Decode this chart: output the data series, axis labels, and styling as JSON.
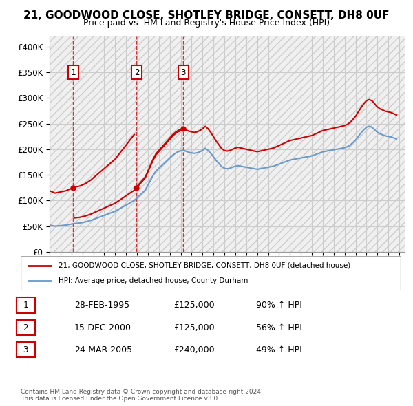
{
  "title": "21, GOODWOOD CLOSE, SHOTLEY BRIDGE, CONSETT, DH8 0UF",
  "subtitle": "Price paid vs. HM Land Registry's House Price Index (HPI)",
  "ylabel_ticks": [
    "£0",
    "£50K",
    "£100K",
    "£150K",
    "£200K",
    "£250K",
    "£300K",
    "£350K",
    "£400K"
  ],
  "y_values": [
    0,
    50000,
    100000,
    150000,
    200000,
    250000,
    300000,
    350000,
    400000
  ],
  "ylim": [
    0,
    420000
  ],
  "xlim_start": 1993.0,
  "xlim_end": 2025.5,
  "sale_dates": [
    1995.16,
    2000.96,
    2005.23
  ],
  "sale_prices": [
    125000,
    125000,
    240000
  ],
  "sale_labels": [
    "1",
    "2",
    "3"
  ],
  "vline_color": "#cc0000",
  "sale_color": "#cc0000",
  "hpi_color": "#6699cc",
  "background_color": "#f0f0f0",
  "chart_bg": "#ffffff",
  "grid_color": "#cccccc",
  "legend_label_sale": "21, GOODWOOD CLOSE, SHOTLEY BRIDGE, CONSETT, DH8 0UF (detached house)",
  "legend_label_hpi": "HPI: Average price, detached house, County Durham",
  "table_data": [
    [
      "1",
      "28-FEB-1995",
      "£125,000",
      "90% ↑ HPI"
    ],
    [
      "2",
      "15-DEC-2000",
      "£125,000",
      "56% ↑ HPI"
    ],
    [
      "3",
      "24-MAR-2005",
      "£240,000",
      "49% ↑ HPI"
    ]
  ],
  "footnote": "Contains HM Land Registry data © Crown copyright and database right 2024.\nThis data is licensed under the Open Government Licence v3.0.",
  "hpi_years": [
    1993.0,
    1993.25,
    1993.5,
    1993.75,
    1994.0,
    1994.25,
    1994.5,
    1994.75,
    1995.0,
    1995.25,
    1995.5,
    1995.75,
    1996.0,
    1996.25,
    1996.5,
    1996.75,
    1997.0,
    1997.25,
    1997.5,
    1997.75,
    1998.0,
    1998.25,
    1998.5,
    1998.75,
    1999.0,
    1999.25,
    1999.5,
    1999.75,
    2000.0,
    2000.25,
    2000.5,
    2000.75,
    2001.0,
    2001.25,
    2001.5,
    2001.75,
    2002.0,
    2002.25,
    2002.5,
    2002.75,
    2003.0,
    2003.25,
    2003.5,
    2003.75,
    2004.0,
    2004.25,
    2004.5,
    2004.75,
    2005.0,
    2005.25,
    2005.5,
    2005.75,
    2006.0,
    2006.25,
    2006.5,
    2006.75,
    2007.0,
    2007.25,
    2007.5,
    2007.75,
    2008.0,
    2008.25,
    2008.5,
    2008.75,
    2009.0,
    2009.25,
    2009.5,
    2009.75,
    2010.0,
    2010.25,
    2010.5,
    2010.75,
    2011.0,
    2011.25,
    2011.5,
    2011.75,
    2012.0,
    2012.25,
    2012.5,
    2012.75,
    2013.0,
    2013.25,
    2013.5,
    2013.75,
    2014.0,
    2014.25,
    2014.5,
    2014.75,
    2015.0,
    2015.25,
    2015.5,
    2015.75,
    2016.0,
    2016.25,
    2016.5,
    2016.75,
    2017.0,
    2017.25,
    2017.5,
    2017.75,
    2018.0,
    2018.25,
    2018.5,
    2018.75,
    2019.0,
    2019.25,
    2019.5,
    2019.75,
    2020.0,
    2020.25,
    2020.5,
    2020.75,
    2021.0,
    2021.25,
    2021.5,
    2021.75,
    2022.0,
    2022.25,
    2022.5,
    2022.75,
    2023.0,
    2023.25,
    2023.5,
    2023.75,
    2024.0,
    2024.25,
    2024.5,
    2024.75
  ],
  "hpi_values": [
    52000,
    51000,
    50000,
    50500,
    51000,
    51500,
    52000,
    53000,
    54000,
    55000,
    55500,
    56000,
    57000,
    58000,
    59500,
    61000,
    63000,
    65000,
    67000,
    69000,
    71000,
    73000,
    75000,
    77000,
    79000,
    82000,
    85000,
    88000,
    91000,
    94000,
    97000,
    100000,
    105000,
    110000,
    115000,
    120000,
    130000,
    140000,
    150000,
    158000,
    163000,
    168000,
    173000,
    178000,
    183000,
    188000,
    192000,
    195000,
    197000,
    198000,
    196000,
    194000,
    193000,
    192000,
    193000,
    195000,
    198000,
    202000,
    198000,
    192000,
    185000,
    178000,
    172000,
    166000,
    163000,
    162000,
    163000,
    165000,
    167000,
    168000,
    167000,
    166000,
    165000,
    164000,
    163000,
    162000,
    161000,
    162000,
    163000,
    164000,
    165000,
    166000,
    167000,
    169000,
    171000,
    173000,
    175000,
    177000,
    179000,
    180000,
    181000,
    182000,
    183000,
    184000,
    185000,
    186000,
    187000,
    189000,
    191000,
    193000,
    195000,
    196000,
    197000,
    198000,
    199000,
    200000,
    201000,
    202000,
    203000,
    205000,
    208000,
    213000,
    218000,
    225000,
    232000,
    238000,
    243000,
    245000,
    243000,
    238000,
    233000,
    230000,
    228000,
    226000,
    225000,
    224000,
    222000,
    220000
  ],
  "sale_hpi_values": [
    65000,
    103000,
    197000
  ],
  "hpi_line_values_at_sales": [
    65000,
    103000,
    197000
  ]
}
